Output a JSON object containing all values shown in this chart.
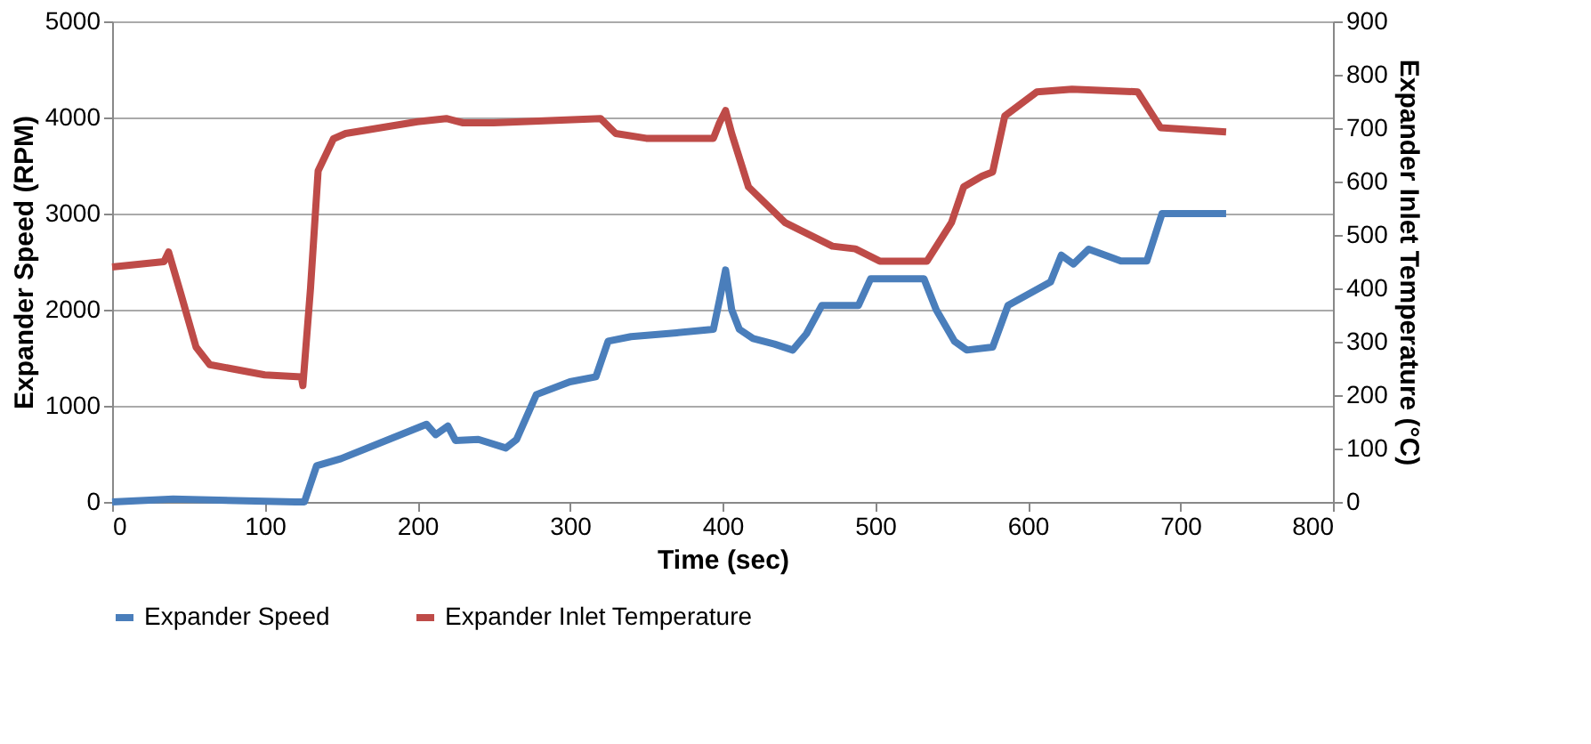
{
  "chart_data": {
    "type": "line",
    "xlabel": "Time (sec)",
    "ylabel": "Expander Speed (RPM)",
    "y2label": "Expander Inlet Temperature (°C)",
    "xlim": [
      0,
      800
    ],
    "xticks": [
      0,
      100,
      200,
      300,
      400,
      500,
      600,
      700,
      800
    ],
    "ylim": [
      0,
      5000
    ],
    "yticks": [
      0,
      1000,
      2000,
      3000,
      4000,
      5000
    ],
    "y2lim": [
      0,
      900
    ],
    "y2ticks": [
      0,
      100,
      200,
      300,
      400,
      500,
      600,
      700,
      800,
      900
    ],
    "grid": "y",
    "legend": "bottom",
    "marker": "none",
    "line_style": "solid",
    "series": [
      {
        "name": "Expander Speed",
        "color": "#4a7ebb",
        "x": [
          0,
          40,
          120,
          126,
          134,
          150,
          206,
          212,
          220,
          225,
          240,
          258,
          265,
          278,
          300,
          317,
          325,
          340,
          370,
          394,
          398,
          402,
          406,
          411,
          420,
          434,
          446,
          455,
          465,
          489,
          497,
          532,
          540,
          552,
          560,
          577,
          587,
          615,
          622,
          630,
          640,
          661,
          678,
          688,
          730
        ],
        "values": [
          0,
          30,
          0,
          0,
          376,
          450,
          808,
          700,
          790,
          640,
          650,
          561,
          650,
          1117,
          1250,
          1302,
          1672,
          1720,
          1760,
          1796,
          2100,
          2413,
          2000,
          1796,
          1700,
          1642,
          1580,
          1750,
          2043,
          2043,
          2321,
          2321,
          2000,
          1672,
          1580,
          1611,
          2043,
          2290,
          2568,
          2475,
          2630,
          2506,
          2506,
          3000,
          3000
        ]
      },
      {
        "name": "Expander Inlet Temperature",
        "color": "#be4b48",
        "axis": "y2",
        "x": [
          0,
          34,
          37,
          45,
          55,
          64,
          100,
          124,
          125,
          130,
          135,
          145,
          153,
          200,
          219,
          230,
          250,
          320,
          330,
          350,
          394,
          398,
          402,
          406,
          417,
          441,
          472,
          487,
          503,
          534,
          550,
          558,
          570,
          577,
          585,
          606,
          629,
          672,
          687,
          730
        ],
        "values": [
          440,
          450,
          468,
          390,
          290,
          257,
          238,
          234,
          218,
          400,
          620,
          680,
          690,
          712,
          718,
          710,
          710,
          718,
          690,
          681,
          681,
          710,
          733,
          690,
          590,
          523,
          479,
          474,
          451,
          451,
          523,
          590,
          610,
          618,
          723,
          768,
          773,
          768,
          701,
          693
        ]
      }
    ]
  }
}
